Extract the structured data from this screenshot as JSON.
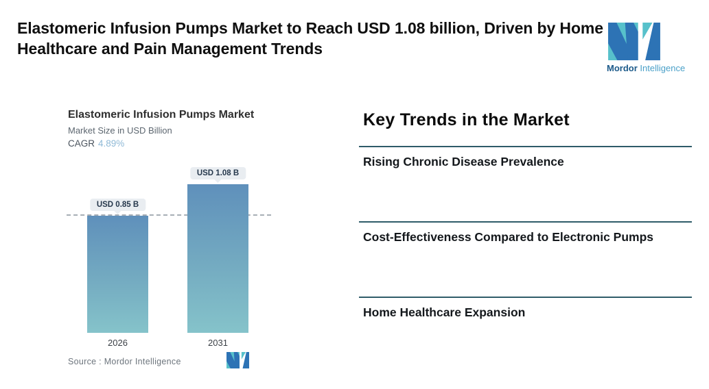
{
  "header": {
    "title": "Elastomeric Infusion Pumps Market to Reach USD 1.08 billion, Driven by Home Healthcare and Pain Management Trends"
  },
  "logo": {
    "brand_bold": "Mordor",
    "brand_light": "Intelligence",
    "teal": "#57c1cb",
    "blue": "#2d73b5"
  },
  "chart": {
    "title": "Elastomeric Infusion Pumps Market",
    "subtitle": "Market Size in USD Billion",
    "cagr_label": "CAGR",
    "cagr_value": "4.89%",
    "source_label": "Source :  Mordor Intelligence"
  },
  "chart_data": {
    "type": "bar",
    "title": "Elastomeric Infusion Pumps Market",
    "ylabel": "Market Size in USD Billion",
    "cagr": "4.89%",
    "categories": [
      "2026",
      "2031"
    ],
    "values": [
      0.85,
      1.08
    ],
    "bar_labels": [
      "USD 0.85 B",
      "USD 1.08 B"
    ],
    "ylim": [
      0,
      1.2
    ],
    "reference_line": 0.85,
    "grid": "off",
    "legend": "none",
    "bar_color_top": "#5f90bb",
    "bar_color_bottom": "#85c3ca"
  },
  "trends": {
    "heading": "Key Trends in the Market",
    "items": [
      {
        "label": "Rising Chronic Disease Prevalence"
      },
      {
        "label": "Cost-Effectiveness Compared to Electronic Pumps"
      },
      {
        "label": "Home Healthcare Expansion"
      }
    ],
    "divider_color": "#2e5b68"
  }
}
